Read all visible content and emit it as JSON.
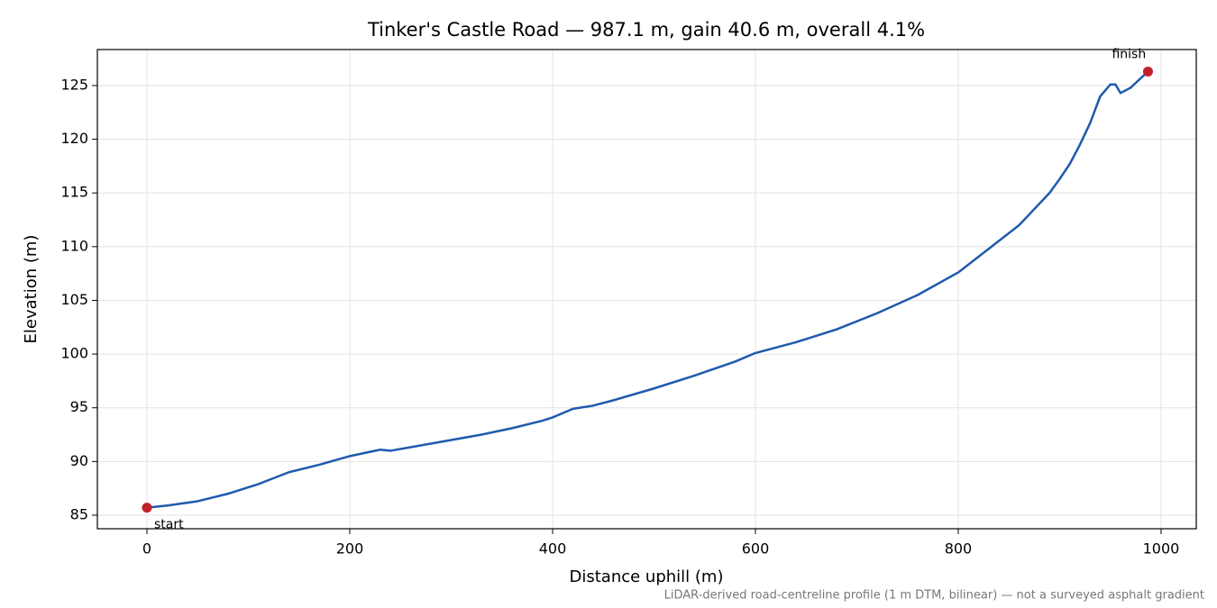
{
  "chart_data": {
    "type": "line",
    "title": "Tinker's Castle Road — 987.1 m, gain 40.6 m, overall 4.1%",
    "xlabel": "Distance uphill (m)",
    "ylabel": "Elevation (m)",
    "footnote": "LiDAR-derived road-centreline profile (1 m DTM, bilinear) — not a surveyed asphalt gradient",
    "x": [
      0,
      20,
      50,
      80,
      110,
      140,
      170,
      200,
      230,
      240,
      270,
      300,
      330,
      360,
      390,
      400,
      420,
      440,
      460,
      500,
      540,
      580,
      600,
      640,
      680,
      720,
      760,
      800,
      830,
      860,
      890,
      900,
      910,
      920,
      930,
      940,
      950,
      955,
      960,
      970,
      987.1
    ],
    "series": [
      {
        "name": "Elevation",
        "color": "#1f5aad",
        "values": [
          85.7,
          85.9,
          86.3,
          87.0,
          87.9,
          89.0,
          89.7,
          90.5,
          91.1,
          91.0,
          91.5,
          92.0,
          92.5,
          93.1,
          93.8,
          94.1,
          94.9,
          95.2,
          95.7,
          96.8,
          98.0,
          99.3,
          100.1,
          101.1,
          102.3,
          103.8,
          105.5,
          107.6,
          109.8,
          112.0,
          115.0,
          116.3,
          117.7,
          119.5,
          121.5,
          124.0,
          125.1,
          125.1,
          124.3,
          124.8,
          126.3
        ]
      }
    ],
    "markers": {
      "color": "#c0202a",
      "x": [
        0,
        987.1
      ],
      "y": [
        85.7,
        126.3
      ],
      "labels": [
        "start",
        "finish"
      ]
    },
    "xlim": [
      -48.9,
      1034.7
    ],
    "ylim": [
      83.74,
      128.35
    ],
    "xticks": [
      0,
      200,
      400,
      600,
      800,
      1000
    ],
    "yticks": [
      85,
      90,
      95,
      100,
      105,
      110,
      115,
      120,
      125
    ],
    "grid": true
  }
}
